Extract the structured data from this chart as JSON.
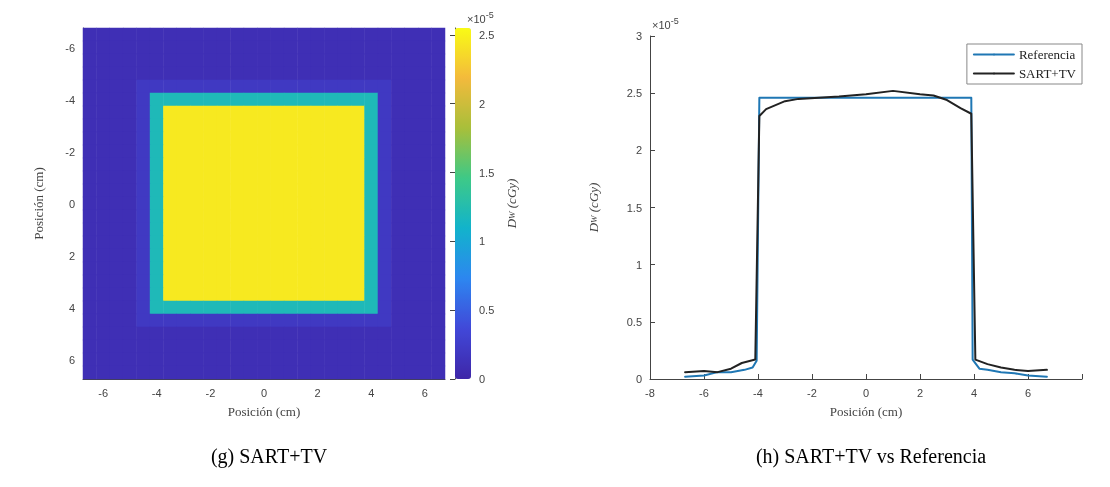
{
  "chart_data": [
    {
      "type": "heatmap",
      "title": "(g) SART+TV",
      "xlabel": "Posición (cm)",
      "ylabel": "Posición (cm)",
      "clabel": "D$_{W}$ (cGy)",
      "annotations": [
        "×10$^{-5}$"
      ],
      "categories": [
        null,
        "-6",
        null,
        null,
        null,
        "-4",
        null,
        null,
        null,
        "-2",
        null,
        null,
        null,
        "0",
        null,
        null,
        null,
        "2",
        null,
        null,
        null,
        "4",
        null,
        null,
        null,
        "6",
        null
      ],
      "y_categories": [
        null,
        "-6",
        null,
        null,
        null,
        "-4",
        null,
        null,
        null,
        "-2",
        null,
        null,
        null,
        "0",
        null,
        null,
        null,
        "2",
        null,
        null,
        null,
        "4",
        null,
        null,
        null,
        "6",
        null
      ],
      "clim": [
        0,
        2.55
      ],
      "cticks": [
        0,
        0.5,
        1,
        1.5,
        2,
        2.5
      ],
      "colors": [
        "#3e26a8",
        "#4148d8",
        "#2d86f0",
        "#12b3cc",
        "#3dc987",
        "#a8bf3a",
        "#f3ba3c",
        "#f9fb15"
      ],
      "cells": [
        [
          0.1,
          0.1,
          0.1,
          0.1,
          0.1,
          0.1,
          0.1,
          0.1,
          0.1,
          0.1,
          0.1,
          0.1,
          0.1,
          0.1,
          0.1,
          0.1,
          0.1,
          0.1,
          0.1,
          0.1,
          0.1,
          0.1,
          0.1,
          0.1,
          0.1,
          0.1,
          0.1
        ],
        [
          0.1,
          0.1,
          0.1,
          0.1,
          0.1,
          0.1,
          0.1,
          0.1,
          0.1,
          0.1,
          0.1,
          0.1,
          0.1,
          0.1,
          0.1,
          0.1,
          0.1,
          0.1,
          0.1,
          0.1,
          0.1,
          0.1,
          0.1,
          0.1,
          0.1,
          0.1,
          0.1
        ],
        [
          0.1,
          0.1,
          0.1,
          0.1,
          0.1,
          0.1,
          0.1,
          0.1,
          0.1,
          0.1,
          0.1,
          0.1,
          0.1,
          0.1,
          0.1,
          0.1,
          0.1,
          0.1,
          0.1,
          0.1,
          0.1,
          0.1,
          0.1,
          0.1,
          0.1,
          0.1,
          0.1
        ],
        [
          0.1,
          0.1,
          0.1,
          0.1,
          0.1,
          0.1,
          0.1,
          0.1,
          0.1,
          0.1,
          0.1,
          0.1,
          0.1,
          0.1,
          0.1,
          0.1,
          0.1,
          0.1,
          0.1,
          0.1,
          0.1,
          0.1,
          0.1,
          0.1,
          0.1,
          0.1,
          0.1
        ],
        [
          0.1,
          0.1,
          0.1,
          0.1,
          0.2,
          0.2,
          0.2,
          0.2,
          0.2,
          0.2,
          0.2,
          0.2,
          0.2,
          0.2,
          0.2,
          0.2,
          0.2,
          0.2,
          0.2,
          0.2,
          0.2,
          0.2,
          0.2,
          0.1,
          0.1,
          0.1,
          0.1
        ],
        [
          0.1,
          0.1,
          0.1,
          0.1,
          0.2,
          1.2,
          1.2,
          1.2,
          1.2,
          1.2,
          1.2,
          1.2,
          1.2,
          1.2,
          1.2,
          1.2,
          1.2,
          1.2,
          1.2,
          1.2,
          1.2,
          1.2,
          0.2,
          0.1,
          0.1,
          0.1,
          0.1
        ],
        [
          0.1,
          0.1,
          0.1,
          0.1,
          0.2,
          1.2,
          2.45,
          2.45,
          2.45,
          2.45,
          2.45,
          2.45,
          2.45,
          2.45,
          2.45,
          2.45,
          2.45,
          2.45,
          2.45,
          2.45,
          2.45,
          1.2,
          0.2,
          0.1,
          0.1,
          0.1,
          0.1
        ],
        [
          0.1,
          0.1,
          0.1,
          0.1,
          0.2,
          1.2,
          2.45,
          2.45,
          2.45,
          2.45,
          2.45,
          2.45,
          2.45,
          2.45,
          2.45,
          2.45,
          2.45,
          2.45,
          2.45,
          2.45,
          2.45,
          1.2,
          0.2,
          0.1,
          0.1,
          0.1,
          0.1
        ],
        [
          0.1,
          0.1,
          0.1,
          0.1,
          0.2,
          1.2,
          2.45,
          2.45,
          2.45,
          2.45,
          2.45,
          2.45,
          2.45,
          2.45,
          2.45,
          2.45,
          2.45,
          2.45,
          2.45,
          2.45,
          2.45,
          1.2,
          0.2,
          0.1,
          0.1,
          0.1,
          0.1
        ],
        [
          0.1,
          0.1,
          0.1,
          0.1,
          0.2,
          1.2,
          2.45,
          2.45,
          2.45,
          2.45,
          2.45,
          2.45,
          2.45,
          2.45,
          2.45,
          2.45,
          2.45,
          2.45,
          2.45,
          2.45,
          2.45,
          1.2,
          0.2,
          0.1,
          0.1,
          0.1,
          0.1
        ],
        [
          0.1,
          0.1,
          0.1,
          0.1,
          0.2,
          1.2,
          2.45,
          2.45,
          2.45,
          2.45,
          2.45,
          2.45,
          2.45,
          2.45,
          2.45,
          2.45,
          2.45,
          2.45,
          2.45,
          2.45,
          2.45,
          1.2,
          0.2,
          0.1,
          0.1,
          0.1,
          0.1
        ],
        [
          0.1,
          0.1,
          0.1,
          0.1,
          0.2,
          1.2,
          2.45,
          2.45,
          2.45,
          2.45,
          2.45,
          2.45,
          2.45,
          2.45,
          2.45,
          2.45,
          2.45,
          2.45,
          2.45,
          2.45,
          2.45,
          1.2,
          0.2,
          0.1,
          0.1,
          0.1,
          0.1
        ],
        [
          0.1,
          0.1,
          0.1,
          0.1,
          0.2,
          1.2,
          2.45,
          2.45,
          2.45,
          2.45,
          2.45,
          2.45,
          2.45,
          2.45,
          2.45,
          2.45,
          2.45,
          2.45,
          2.45,
          2.45,
          2.45,
          1.2,
          0.2,
          0.1,
          0.1,
          0.1,
          0.1
        ],
        [
          0.1,
          0.1,
          0.1,
          0.1,
          0.2,
          1.2,
          2.45,
          2.45,
          2.45,
          2.45,
          2.45,
          2.45,
          2.45,
          2.45,
          2.45,
          2.45,
          2.45,
          2.45,
          2.45,
          2.45,
          2.45,
          1.2,
          0.2,
          0.1,
          0.1,
          0.1,
          0.1
        ],
        [
          0.1,
          0.1,
          0.1,
          0.1,
          0.2,
          1.2,
          2.45,
          2.45,
          2.45,
          2.45,
          2.45,
          2.45,
          2.45,
          2.45,
          2.45,
          2.45,
          2.45,
          2.45,
          2.45,
          2.45,
          2.45,
          1.2,
          0.2,
          0.1,
          0.1,
          0.1,
          0.1
        ],
        [
          0.1,
          0.1,
          0.1,
          0.1,
          0.2,
          1.2,
          2.45,
          2.45,
          2.45,
          2.45,
          2.45,
          2.45,
          2.45,
          2.45,
          2.45,
          2.45,
          2.45,
          2.45,
          2.45,
          2.45,
          2.45,
          1.2,
          0.2,
          0.1,
          0.1,
          0.1,
          0.1
        ],
        [
          0.1,
          0.1,
          0.1,
          0.1,
          0.2,
          1.2,
          2.45,
          2.45,
          2.45,
          2.45,
          2.45,
          2.45,
          2.45,
          2.45,
          2.45,
          2.45,
          2.45,
          2.45,
          2.45,
          2.45,
          2.45,
          1.2,
          0.2,
          0.1,
          0.1,
          0.1,
          0.1
        ],
        [
          0.1,
          0.1,
          0.1,
          0.1,
          0.2,
          1.2,
          2.45,
          2.45,
          2.45,
          2.45,
          2.45,
          2.45,
          2.45,
          2.45,
          2.45,
          2.45,
          2.45,
          2.45,
          2.45,
          2.45,
          2.45,
          1.2,
          0.2,
          0.1,
          0.1,
          0.1,
          0.1
        ],
        [
          0.1,
          0.1,
          0.1,
          0.1,
          0.2,
          1.2,
          2.45,
          2.45,
          2.45,
          2.45,
          2.45,
          2.45,
          2.45,
          2.45,
          2.45,
          2.45,
          2.45,
          2.45,
          2.45,
          2.45,
          2.45,
          1.2,
          0.2,
          0.1,
          0.1,
          0.1,
          0.1
        ],
        [
          0.1,
          0.1,
          0.1,
          0.1,
          0.2,
          1.2,
          2.45,
          2.45,
          2.45,
          2.45,
          2.45,
          2.45,
          2.45,
          2.45,
          2.45,
          2.45,
          2.45,
          2.45,
          2.45,
          2.45,
          2.45,
          1.2,
          0.2,
          0.1,
          0.1,
          0.1,
          0.1
        ],
        [
          0.1,
          0.1,
          0.1,
          0.1,
          0.2,
          1.2,
          2.45,
          2.45,
          2.45,
          2.45,
          2.45,
          2.45,
          2.45,
          2.45,
          2.45,
          2.45,
          2.45,
          2.45,
          2.45,
          2.45,
          2.45,
          1.2,
          0.2,
          0.1,
          0.1,
          0.1,
          0.1
        ],
        [
          0.1,
          0.1,
          0.1,
          0.1,
          0.2,
          1.2,
          1.2,
          1.2,
          1.2,
          1.2,
          1.2,
          1.2,
          1.2,
          1.2,
          1.2,
          1.2,
          1.2,
          1.2,
          1.2,
          1.2,
          1.2,
          1.2,
          0.2,
          0.1,
          0.1,
          0.1,
          0.1
        ],
        [
          0.1,
          0.1,
          0.1,
          0.1,
          0.2,
          0.2,
          0.2,
          0.2,
          0.2,
          0.2,
          0.2,
          0.2,
          0.2,
          0.2,
          0.2,
          0.2,
          0.2,
          0.2,
          0.2,
          0.2,
          0.2,
          0.2,
          0.2,
          0.1,
          0.1,
          0.1,
          0.1
        ],
        [
          0.1,
          0.1,
          0.1,
          0.1,
          0.1,
          0.1,
          0.1,
          0.1,
          0.1,
          0.1,
          0.1,
          0.1,
          0.1,
          0.1,
          0.1,
          0.1,
          0.1,
          0.1,
          0.1,
          0.1,
          0.1,
          0.1,
          0.1,
          0.1,
          0.1,
          0.1,
          0.1
        ],
        [
          0.1,
          0.1,
          0.1,
          0.1,
          0.1,
          0.1,
          0.1,
          0.1,
          0.1,
          0.1,
          0.1,
          0.1,
          0.1,
          0.1,
          0.1,
          0.1,
          0.1,
          0.1,
          0.1,
          0.1,
          0.1,
          0.1,
          0.1,
          0.1,
          0.1,
          0.1,
          0.1
        ],
        [
          0.1,
          0.1,
          0.1,
          0.1,
          0.1,
          0.1,
          0.1,
          0.1,
          0.1,
          0.1,
          0.1,
          0.1,
          0.1,
          0.1,
          0.1,
          0.1,
          0.1,
          0.1,
          0.1,
          0.1,
          0.1,
          0.1,
          0.1,
          0.1,
          0.1,
          0.1,
          0.1
        ],
        [
          0.1,
          0.1,
          0.1,
          0.1,
          0.1,
          0.1,
          0.1,
          0.1,
          0.1,
          0.1,
          0.1,
          0.1,
          0.1,
          0.1,
          0.1,
          0.1,
          0.1,
          0.1,
          0.1,
          0.1,
          0.1,
          0.1,
          0.1,
          0.1,
          0.1,
          0.1,
          0.1
        ]
      ]
    },
    {
      "type": "line",
      "title": "(h) SART+TV vs Referencia",
      "xlabel": "Posición (cm)",
      "ylabel": "D$_{W}$ (cGy)",
      "annotations": [
        "×10$^{-5}$"
      ],
      "xlim": [
        -8,
        8
      ],
      "xticks": [
        -8,
        -6,
        -4,
        -2,
        0,
        2,
        4,
        6,
        {
          "value": 8,
          "label": null
        }
      ],
      "ylim": [
        0,
        3
      ],
      "yticks": [
        0,
        0.5,
        1,
        1.5,
        2,
        2.5,
        3
      ],
      "legend": "top right",
      "grid": false,
      "marker": "none",
      "line_style": "solid",
      "series": [
        {
          "name": "Referencia",
          "color": "#1f77b4",
          "x": [
            -6.7,
            -6,
            -5.5,
            -5,
            -4.5,
            -4.2,
            -4.05,
            -3.95,
            3.9,
            3.95,
            4.2,
            4.5,
            5,
            5.5,
            6,
            6.7
          ],
          "values": [
            0.02,
            0.03,
            0.06,
            0.06,
            0.08,
            0.1,
            0.16,
            2.46,
            2.46,
            0.17,
            0.09,
            0.08,
            0.06,
            0.05,
            0.03,
            0.02
          ]
        },
        {
          "name": "SART+TV",
          "color": "#222222",
          "x": [
            -6.7,
            -6,
            -5.5,
            -5,
            -4.6,
            -4.1,
            -3.95,
            -3.7,
            -3,
            -2.5,
            -1,
            0,
            1,
            2,
            2.5,
            3,
            3.5,
            3.9,
            4.05,
            4.5,
            5,
            5.5,
            6,
            6.7
          ],
          "values": [
            0.06,
            0.07,
            0.06,
            0.09,
            0.14,
            0.17,
            2.3,
            2.36,
            2.43,
            2.45,
            2.47,
            2.49,
            2.52,
            2.49,
            2.48,
            2.44,
            2.37,
            2.32,
            0.17,
            0.13,
            0.1,
            0.08,
            0.07,
            0.08
          ]
        }
      ]
    }
  ]
}
